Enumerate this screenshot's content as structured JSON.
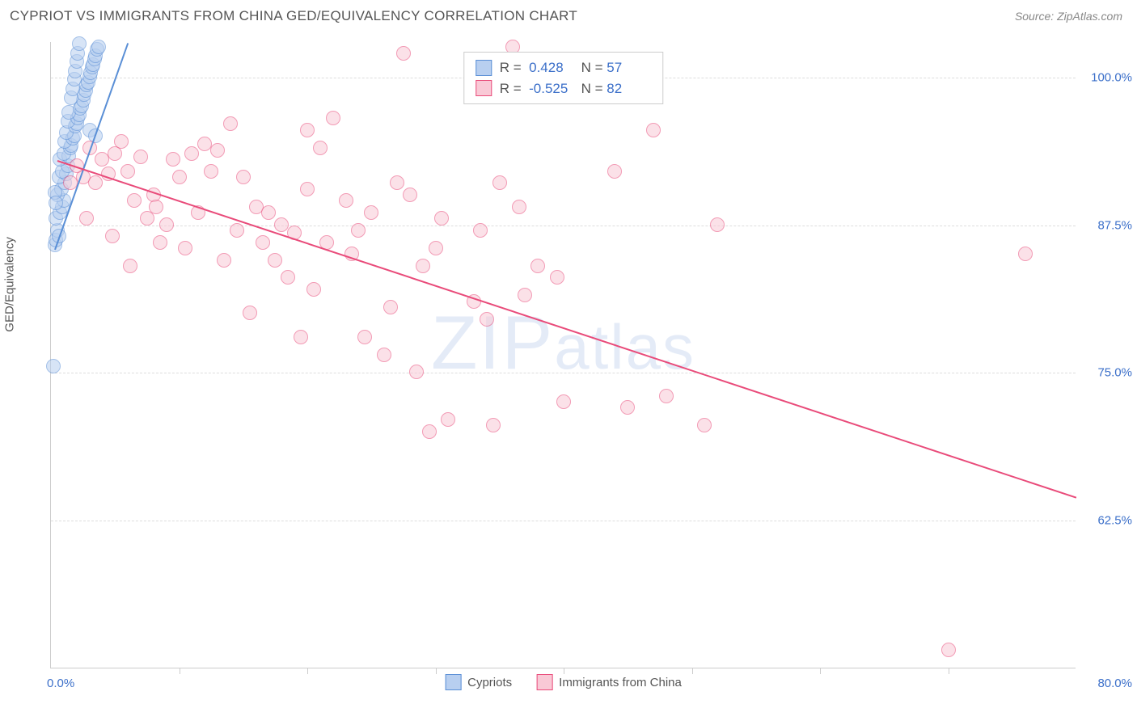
{
  "title": "CYPRIOT VS IMMIGRANTS FROM CHINA GED/EQUIVALENCY CORRELATION CHART",
  "source": "Source: ZipAtlas.com",
  "watermark": "ZIPatlas",
  "ylabel": "GED/Equivalency",
  "chart": {
    "type": "scatter",
    "background_color": "#ffffff",
    "grid_color": "#dddddd",
    "axis_color": "#cccccc",
    "label_color": "#3b6fc9",
    "text_color": "#555555",
    "xlim": [
      0,
      80
    ],
    "ylim": [
      50,
      103
    ],
    "xlim_labels": [
      "0.0%",
      "80.0%"
    ],
    "xtick_positions": [
      10,
      20,
      30,
      40,
      50,
      60,
      70
    ],
    "yticks": [
      {
        "v": 62.5,
        "label": "62.5%"
      },
      {
        "v": 75.0,
        "label": "75.0%"
      },
      {
        "v": 87.5,
        "label": "87.5%"
      },
      {
        "v": 100.0,
        "label": "100.0%"
      }
    ],
    "point_radius": 9,
    "point_stroke_width": 1.5,
    "line_width": 2,
    "series": [
      {
        "name": "Cypriots",
        "fill": "#b8cff0",
        "stroke": "#5a8fd6",
        "fill_opacity": 0.55,
        "R": "0.428",
        "N": "57",
        "trend": {
          "x1": 0.3,
          "y1": 85.5,
          "x2": 6.0,
          "y2": 103.0
        },
        "points": [
          [
            0.2,
            75.5
          ],
          [
            0.3,
            85.8
          ],
          [
            0.4,
            86.2
          ],
          [
            0.5,
            87.0
          ],
          [
            0.6,
            86.5
          ],
          [
            0.4,
            88.0
          ],
          [
            0.7,
            88.5
          ],
          [
            0.9,
            89.0
          ],
          [
            1.0,
            89.5
          ],
          [
            0.5,
            90.0
          ],
          [
            0.8,
            90.5
          ],
          [
            1.1,
            91.0
          ],
          [
            0.6,
            91.5
          ],
          [
            1.2,
            91.8
          ],
          [
            0.9,
            92.0
          ],
          [
            1.3,
            92.5
          ],
          [
            0.7,
            93.0
          ],
          [
            1.4,
            93.3
          ],
          [
            1.0,
            93.5
          ],
          [
            1.5,
            94.0
          ],
          [
            1.6,
            94.2
          ],
          [
            1.1,
            94.5
          ],
          [
            1.7,
            94.8
          ],
          [
            1.8,
            95.0
          ],
          [
            1.2,
            95.3
          ],
          [
            3.0,
            95.5
          ],
          [
            1.9,
            95.8
          ],
          [
            2.0,
            96.0
          ],
          [
            1.3,
            96.2
          ],
          [
            2.1,
            96.5
          ],
          [
            2.2,
            96.8
          ],
          [
            1.4,
            97.0
          ],
          [
            2.3,
            97.3
          ],
          [
            2.4,
            97.5
          ],
          [
            3.5,
            95.0
          ],
          [
            2.5,
            98.0
          ],
          [
            1.6,
            98.2
          ],
          [
            2.6,
            98.5
          ],
          [
            2.7,
            98.8
          ],
          [
            1.7,
            99.0
          ],
          [
            2.8,
            99.3
          ],
          [
            2.9,
            99.5
          ],
          [
            1.8,
            99.8
          ],
          [
            3.0,
            100.0
          ],
          [
            3.1,
            100.3
          ],
          [
            1.9,
            100.5
          ],
          [
            3.2,
            100.8
          ],
          [
            3.3,
            101.0
          ],
          [
            2.0,
            101.3
          ],
          [
            3.4,
            101.5
          ],
          [
            3.5,
            101.8
          ],
          [
            2.1,
            102.0
          ],
          [
            3.6,
            102.3
          ],
          [
            3.7,
            102.5
          ],
          [
            2.2,
            102.8
          ],
          [
            0.3,
            90.2
          ],
          [
            0.4,
            89.3
          ]
        ]
      },
      {
        "name": "Immigrants from China",
        "fill": "#f9c9d6",
        "stroke": "#e94b7a",
        "fill_opacity": 0.55,
        "R": "-0.525",
        "N": "82",
        "trend": {
          "x1": 0.5,
          "y1": 93.0,
          "x2": 80.0,
          "y2": 64.5
        },
        "points": [
          [
            1.5,
            91.0
          ],
          [
            2.5,
            91.5
          ],
          [
            3.5,
            91.0
          ],
          [
            2.0,
            92.5
          ],
          [
            4.0,
            93.0
          ],
          [
            5.0,
            93.5
          ],
          [
            3.0,
            94.0
          ],
          [
            6.0,
            92.0
          ],
          [
            4.5,
            91.8
          ],
          [
            7.0,
            93.2
          ],
          [
            5.5,
            94.5
          ],
          [
            8.0,
            90.0
          ],
          [
            6.5,
            89.5
          ],
          [
            7.5,
            88.0
          ],
          [
            9.0,
            87.5
          ],
          [
            8.5,
            86.0
          ],
          [
            10.0,
            91.5
          ],
          [
            11.0,
            93.5
          ],
          [
            12.0,
            94.3
          ],
          [
            10.5,
            85.5
          ],
          [
            13.0,
            93.8
          ],
          [
            14.0,
            96.0
          ],
          [
            15.0,
            91.5
          ],
          [
            11.5,
            88.5
          ],
          [
            16.0,
            89.0
          ],
          [
            14.5,
            87.0
          ],
          [
            17.0,
            88.5
          ],
          [
            18.0,
            87.5
          ],
          [
            19.0,
            86.8
          ],
          [
            20.0,
            95.5
          ],
          [
            17.5,
            84.5
          ],
          [
            22.0,
            96.5
          ],
          [
            21.0,
            94.0
          ],
          [
            23.0,
            89.5
          ],
          [
            20.5,
            82.0
          ],
          [
            24.0,
            87.0
          ],
          [
            25.0,
            88.5
          ],
          [
            26.0,
            76.5
          ],
          [
            23.5,
            85.0
          ],
          [
            19.5,
            78.0
          ],
          [
            27.0,
            91.0
          ],
          [
            28.0,
            90.0
          ],
          [
            29.0,
            84.0
          ],
          [
            30.0,
            85.5
          ],
          [
            26.5,
            80.5
          ],
          [
            31.0,
            71.0
          ],
          [
            28.5,
            75.0
          ],
          [
            29.5,
            70.0
          ],
          [
            33.0,
            81.0
          ],
          [
            34.0,
            79.5
          ],
          [
            35.0,
            91.0
          ],
          [
            36.0,
            102.5
          ],
          [
            34.5,
            70.5
          ],
          [
            37.0,
            81.5
          ],
          [
            38.0,
            84.0
          ],
          [
            40.0,
            72.5
          ],
          [
            45.0,
            72.0
          ],
          [
            44.0,
            92.0
          ],
          [
            47.0,
            95.5
          ],
          [
            48.0,
            73.0
          ],
          [
            51.0,
            70.5
          ],
          [
            52.0,
            87.5
          ],
          [
            70.0,
            51.5
          ],
          [
            76.0,
            85.0
          ],
          [
            2.8,
            88.0
          ],
          [
            6.2,
            84.0
          ],
          [
            9.5,
            93.0
          ],
          [
            12.5,
            92.0
          ],
          [
            15.5,
            80.0
          ],
          [
            18.5,
            83.0
          ],
          [
            21.5,
            86.0
          ],
          [
            24.5,
            78.0
          ],
          [
            27.5,
            102.0
          ],
          [
            30.5,
            88.0
          ],
          [
            33.5,
            87.0
          ],
          [
            36.5,
            89.0
          ],
          [
            39.5,
            83.0
          ],
          [
            20.0,
            90.5
          ],
          [
            16.5,
            86.0
          ],
          [
            13.5,
            84.5
          ],
          [
            4.8,
            86.5
          ],
          [
            8.2,
            89.0
          ]
        ]
      }
    ],
    "legend": {
      "stats_labels": {
        "R": "R =",
        "N": "N ="
      }
    }
  }
}
